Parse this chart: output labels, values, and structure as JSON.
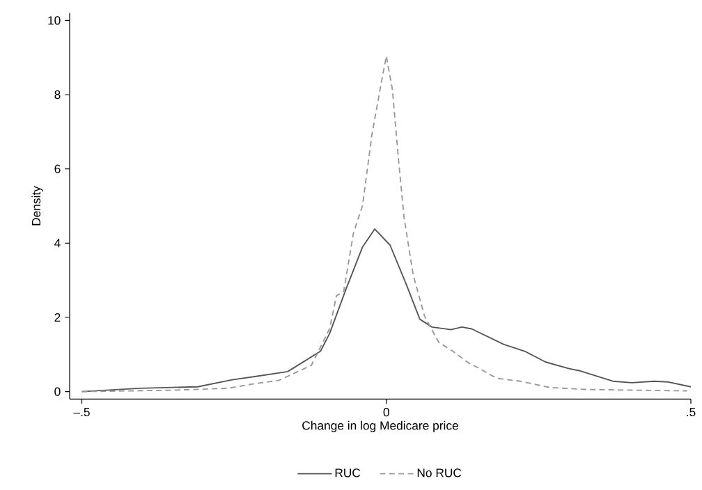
{
  "chart_data": {
    "type": "line",
    "xlabel": "Change in log Medicare price",
    "ylabel": "Density",
    "xlim": [
      -0.52,
      0.5
    ],
    "ylim": [
      -0.2,
      10.2
    ],
    "xticks": [
      {
        "value": -0.5,
        "label": "–.5"
      },
      0,
      {
        "value": 0.5,
        "label": ".5"
      }
    ],
    "yticks": [
      0,
      2,
      4,
      6,
      8,
      10
    ],
    "grid": false,
    "legend": "bottom",
    "series": [
      {
        "name": "RUC",
        "color": "#555555",
        "line_style": "solid",
        "x": [
          -0.5,
          -0.405,
          -0.31,
          -0.253,
          -0.214,
          -0.162,
          -0.108,
          -0.093,
          -0.066,
          -0.039,
          -0.019,
          0.006,
          0.033,
          0.055,
          0.075,
          0.106,
          0.124,
          0.14,
          0.193,
          0.227,
          0.261,
          0.3,
          0.318,
          0.372,
          0.403,
          0.44,
          0.463,
          0.5
        ],
        "values": [
          0.0,
          0.09,
          0.13,
          0.32,
          0.41,
          0.54,
          1.09,
          1.57,
          2.77,
          3.9,
          4.38,
          3.95,
          2.88,
          1.95,
          1.74,
          1.67,
          1.74,
          1.69,
          1.27,
          1.09,
          0.8,
          0.62,
          0.56,
          0.28,
          0.24,
          0.28,
          0.26,
          0.13
        ]
      },
      {
        "name": "No RUC",
        "color": "#999999",
        "line_style": "dashed",
        "x": [
          -0.5,
          -0.348,
          -0.26,
          -0.214,
          -0.177,
          -0.157,
          -0.123,
          -0.093,
          -0.082,
          -0.07,
          -0.054,
          -0.039,
          -0.024,
          -0.009,
          0.0,
          0.01,
          0.02,
          0.029,
          0.044,
          0.063,
          0.086,
          0.109,
          0.135,
          0.151,
          0.181,
          0.22,
          0.269,
          0.326,
          0.403,
          0.494
        ],
        "values": [
          0.0,
          0.04,
          0.09,
          0.22,
          0.3,
          0.45,
          0.71,
          1.7,
          2.58,
          2.7,
          4.27,
          5.02,
          6.89,
          8.26,
          9.04,
          8.13,
          6.25,
          4.7,
          3.15,
          2.02,
          1.33,
          1.09,
          0.77,
          0.64,
          0.36,
          0.28,
          0.11,
          0.06,
          0.04,
          0.02
        ]
      }
    ]
  }
}
